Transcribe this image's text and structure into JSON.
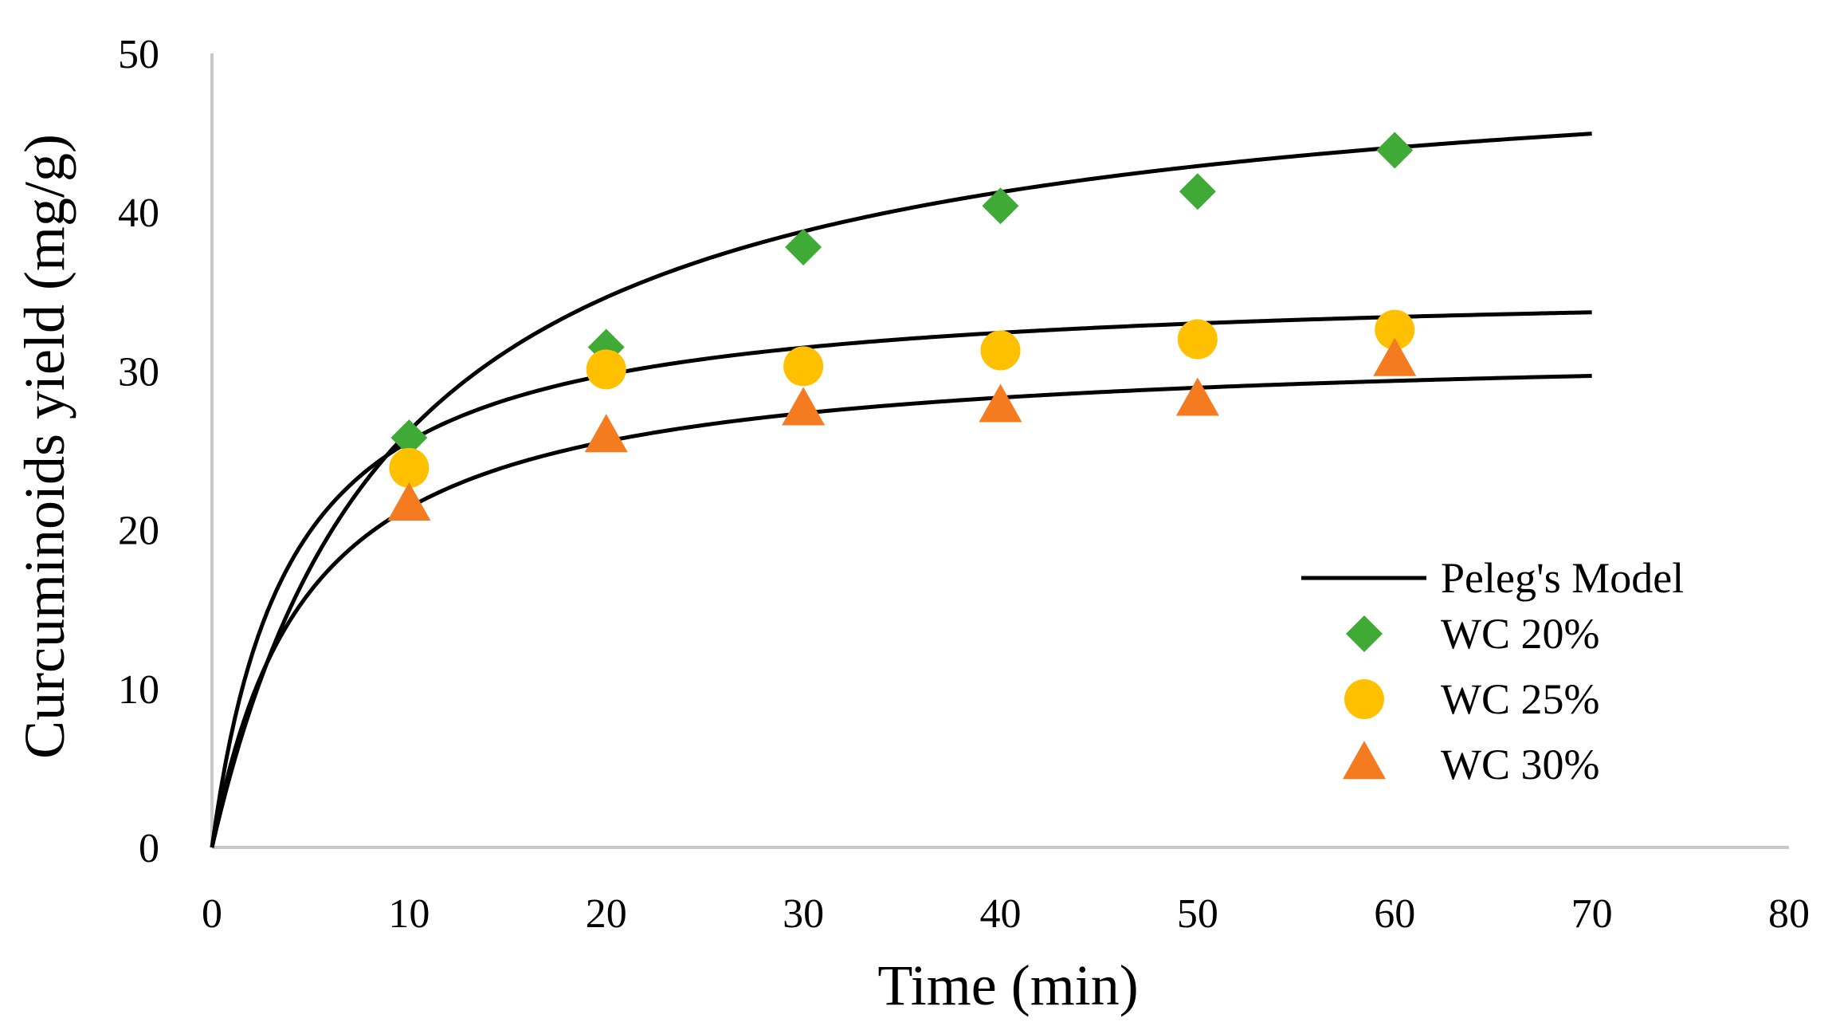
{
  "chart_data": {
    "type": "scatter",
    "title": "",
    "xlabel": "Time (min)",
    "ylabel": "Curcuminoids yield (mg/g)",
    "xlim": [
      0,
      80
    ],
    "ylim": [
      0,
      50
    ],
    "x_ticks": [
      "0",
      "10",
      "20",
      "30",
      "40",
      "50",
      "60",
      "70",
      "80"
    ],
    "y_ticks": [
      "0",
      "10",
      "20",
      "30",
      "40",
      "50"
    ],
    "grid": false,
    "legend_position": "bottom-right",
    "model": {
      "name": "Peleg's Model",
      "color": "#000000",
      "x_max": 70,
      "curves": [
        {
          "for": "WC 20%",
          "k1": 0.1854,
          "k2": 0.0196
        },
        {
          "for": "WC 25%",
          "k1": 0.1102,
          "k2": 0.0281
        },
        {
          "for": "WC 30%",
          "k1": 0.1522,
          "k2": 0.0315
        }
      ]
    },
    "series": [
      {
        "name": "WC 20%",
        "marker": "diamond",
        "color": "#3faa35",
        "x": [
          10,
          20,
          30,
          40,
          50,
          60
        ],
        "values": [
          25.8,
          31.5,
          37.8,
          40.4,
          41.3,
          43.9
        ]
      },
      {
        "name": "WC 25%",
        "marker": "circle",
        "color": "#ffc000",
        "x": [
          10,
          20,
          30,
          40,
          50,
          60
        ],
        "values": [
          23.9,
          30.1,
          30.3,
          31.3,
          32.0,
          32.6
        ]
      },
      {
        "name": "WC 30%",
        "marker": "triangle",
        "color": "#f47b20",
        "x": [
          10,
          20,
          30,
          40,
          50,
          60
        ],
        "values": [
          21.5,
          25.8,
          27.5,
          27.7,
          28.1,
          30.6
        ]
      }
    ]
  }
}
